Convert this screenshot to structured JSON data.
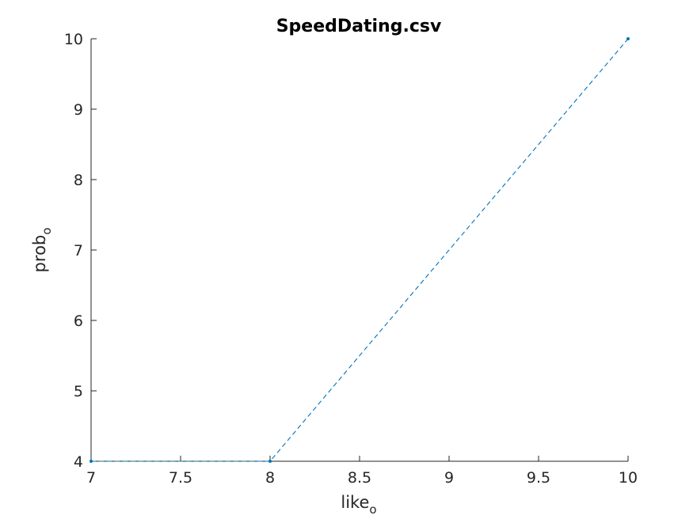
{
  "chart_data": {
    "type": "line",
    "title": "SpeedDating.csv",
    "xlabel": {
      "base": "like",
      "sub": "o"
    },
    "ylabel": {
      "base": "prob",
      "sub": "o"
    },
    "xlim": [
      7,
      10
    ],
    "ylim": [
      4,
      10
    ],
    "xticks": [
      7,
      7.5,
      8,
      8.5,
      9,
      9.5,
      10
    ],
    "xtick_labels": [
      "7",
      "7.5",
      "8",
      "8.5",
      "9",
      "9.5",
      "10"
    ],
    "yticks": [
      4,
      5,
      6,
      7,
      8,
      9,
      10
    ],
    "ytick_labels": [
      "4",
      "5",
      "6",
      "7",
      "8",
      "9",
      "10"
    ],
    "grid": false,
    "series": [
      {
        "x": [
          7,
          8,
          10
        ],
        "y": [
          4,
          4,
          10
        ],
        "color": "#0072BD",
        "line_style": "dashed",
        "marker": "dot"
      }
    ]
  }
}
